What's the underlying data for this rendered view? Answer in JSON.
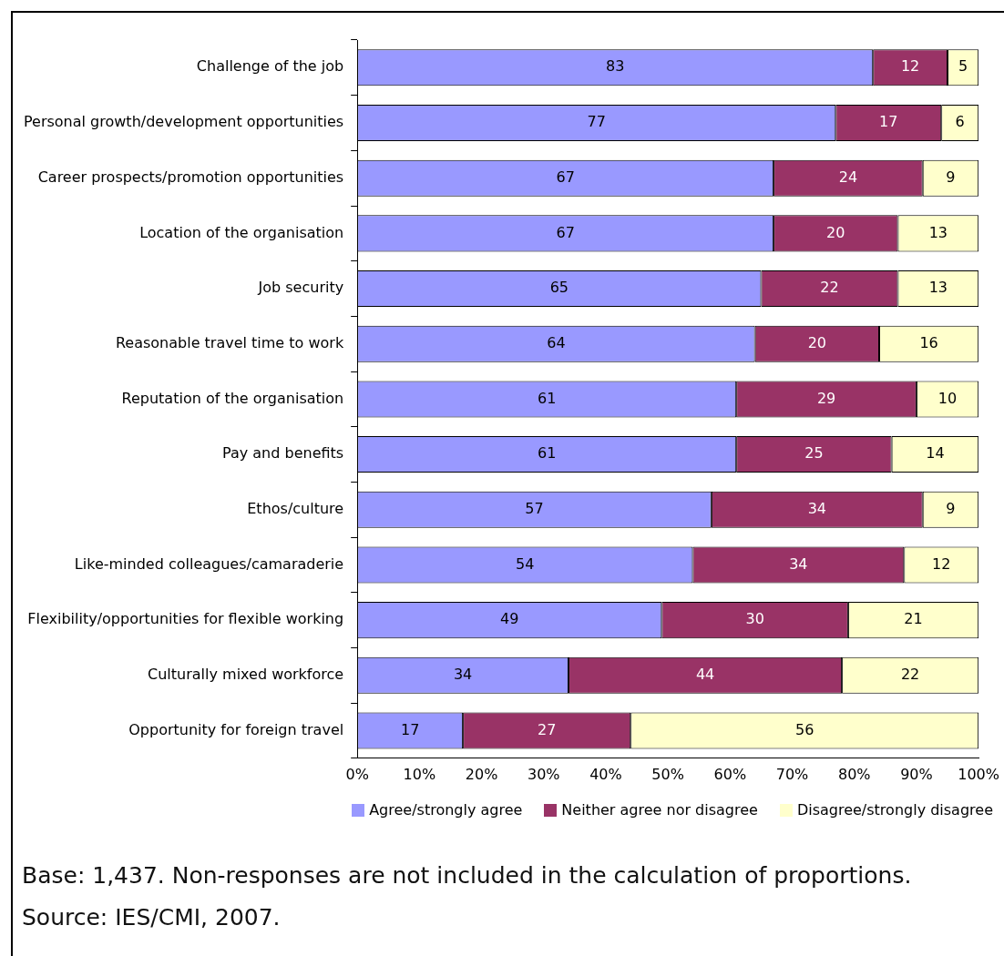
{
  "chart_data": {
    "type": "bar",
    "orientation": "horizontal",
    "stacked": true,
    "data_labels": true,
    "legend": "bottom",
    "grid": false,
    "categories": [
      "Challenge of the job",
      "Personal growth/development opportunities",
      "Career prospects/promotion opportunities",
      "Location of the organisation",
      "Job security",
      "Reasonable travel time to work",
      "Reputation of the organisation",
      "Pay and benefits",
      "Ethos/culture",
      "Like-minded colleagues/camaraderie",
      "Flexibility/opportunities for flexible working",
      "Culturally mixed workforce",
      "Opportunity for foreign travel"
    ],
    "series": [
      {
        "name": "Agree/strongly agree",
        "color": "#9999ff",
        "values": [
          83,
          77,
          67,
          67,
          65,
          64,
          61,
          61,
          57,
          54,
          49,
          34,
          17
        ]
      },
      {
        "name": "Neither agree nor disagree",
        "color": "#993366",
        "values": [
          12,
          17,
          24,
          20,
          22,
          20,
          29,
          25,
          34,
          34,
          30,
          44,
          27
        ]
      },
      {
        "name": "Disagree/strongly disagree",
        "color": "#ffffcc",
        "values": [
          5,
          6,
          9,
          13,
          13,
          16,
          10,
          14,
          9,
          12,
          21,
          22,
          56
        ]
      }
    ],
    "xlim": [
      0,
      100
    ],
    "xticks": [
      {
        "value": 0,
        "label": "0%"
      },
      {
        "value": 10,
        "label": "10%"
      },
      {
        "value": 20,
        "label": "20%"
      },
      {
        "value": 30,
        "label": "30%"
      },
      {
        "value": 40,
        "label": "40%"
      },
      {
        "value": 50,
        "label": "50%"
      },
      {
        "value": 60,
        "label": "60%"
      },
      {
        "value": 70,
        "label": "70%"
      },
      {
        "value": 80,
        "label": "80%"
      },
      {
        "value": 90,
        "label": "90%"
      },
      {
        "value": 100,
        "label": "100%"
      }
    ],
    "annotations": [
      "Base: 1,437. Non-responses are not included in the calculation of proportions.",
      "Source: IES/CMI, 2007."
    ]
  }
}
